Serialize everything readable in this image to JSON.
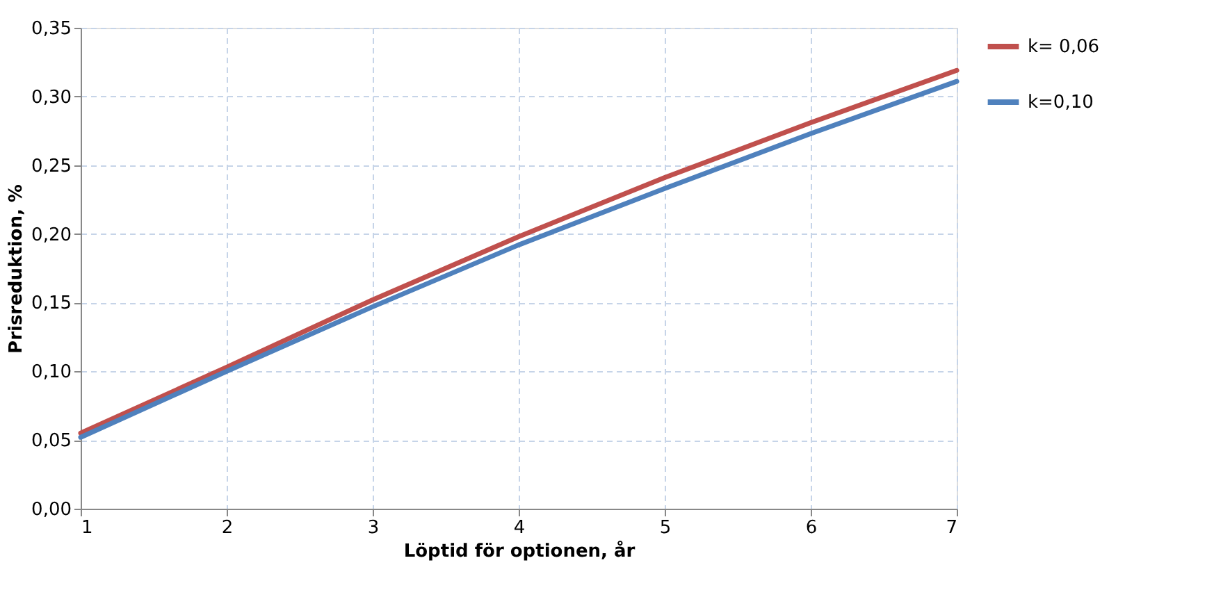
{
  "chart_data": {
    "type": "line",
    "xlabel": "Löptid för optionen, år",
    "ylabel": "Prisreduktion, %",
    "x": [
      1,
      2,
      3,
      4,
      5,
      6,
      7
    ],
    "series": [
      {
        "name": "k= 0,06",
        "color": "#c0504d",
        "values": [
          0.055,
          0.103,
          0.152,
          0.198,
          0.241,
          0.281,
          0.319
        ]
      },
      {
        "name": "k=0,10",
        "color": "#4f81bd",
        "values": [
          0.052,
          0.1,
          0.147,
          0.192,
          0.233,
          0.273,
          0.311
        ]
      }
    ],
    "xlim": [
      1,
      7
    ],
    "xticks": [
      1,
      2,
      3,
      4,
      5,
      6,
      7
    ],
    "ylim": [
      0,
      0.35
    ],
    "yticks": [
      {
        "value": 0,
        "label": "0,00"
      },
      {
        "value": 0.05,
        "label": "0,05"
      },
      {
        "value": 0.1,
        "label": "0,10"
      },
      {
        "value": 0.15,
        "label": "0,15"
      },
      {
        "value": 0.2,
        "label": "0,20"
      },
      {
        "value": 0.25,
        "label": "0,25"
      },
      {
        "value": 0.3,
        "label": "0,30"
      },
      {
        "value": 0.35,
        "label": "0,35"
      }
    ],
    "grid": true,
    "legend": "right",
    "marker": "none",
    "line_style": "solid"
  }
}
